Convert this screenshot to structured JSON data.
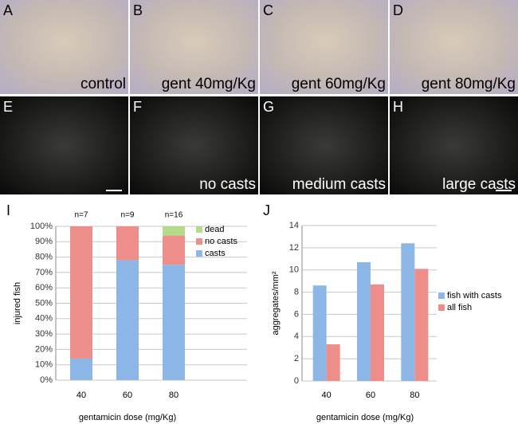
{
  "panels": [
    {
      "letter": "A",
      "caption": "control"
    },
    {
      "letter": "B",
      "caption": "gent 40mg/Kg"
    },
    {
      "letter": "C",
      "caption": "gent 60mg/Kg"
    },
    {
      "letter": "D",
      "caption": "gent 80mg/Kg"
    },
    {
      "letter": "E"
    },
    {
      "letter": "F",
      "caption": "no casts"
    },
    {
      "letter": "G",
      "caption": "medium casts"
    },
    {
      "letter": "H",
      "caption": "large casts"
    }
  ],
  "chart_data": [
    {
      "type": "stacked_bar",
      "label": "I",
      "xlabel": "gentamicin dose (mg/Kg)",
      "ylabel": "injured fish",
      "categories": [
        "40",
        "60",
        "80"
      ],
      "annotations": [
        "n=7",
        "n=9",
        "n=16"
      ],
      "series": [
        {
          "name": "casts",
          "color": "#8cb6e6",
          "values": [
            14,
            78,
            75
          ]
        },
        {
          "name": "no casts",
          "color": "#ee8e8a",
          "values": [
            86,
            22,
            19
          ]
        },
        {
          "name": "dead",
          "color": "#b3db8a",
          "values": [
            0,
            0,
            6
          ]
        }
      ],
      "ylim": [
        0,
        100
      ],
      "yticks": [
        {
          "value": 0,
          "label": "0%"
        },
        {
          "value": 10,
          "label": "10%"
        },
        {
          "value": 20,
          "label": "20%"
        },
        {
          "value": 30,
          "label": "30%"
        },
        {
          "value": 40,
          "label": "40%"
        },
        {
          "value": 50,
          "label": "50%"
        },
        {
          "value": 60,
          "label": "60%"
        },
        {
          "value": 70,
          "label": "70%"
        },
        {
          "value": 80,
          "label": "80%"
        },
        {
          "value": 90,
          "label": "90%"
        },
        {
          "value": 100,
          "label": "100%"
        }
      ],
      "grid": true,
      "legend": "right"
    },
    {
      "type": "bar",
      "label": "J",
      "xlabel": "gentamicin dose (mg/Kg)",
      "ylabel": "aggregates/mm²",
      "categories": [
        "40",
        "60",
        "80"
      ],
      "series": [
        {
          "name": "fish with casts",
          "color": "#8cb6e6",
          "values": [
            8.6,
            10.7,
            12.4
          ]
        },
        {
          "name": "all fish",
          "color": "#ee8e8a",
          "values": [
            3.3,
            8.7,
            10.1
          ]
        }
      ],
      "ylim": [
        0,
        14
      ],
      "yticks": [
        0,
        2,
        4,
        6,
        8,
        10,
        12,
        14
      ],
      "grid": true,
      "legend": "right"
    }
  ]
}
